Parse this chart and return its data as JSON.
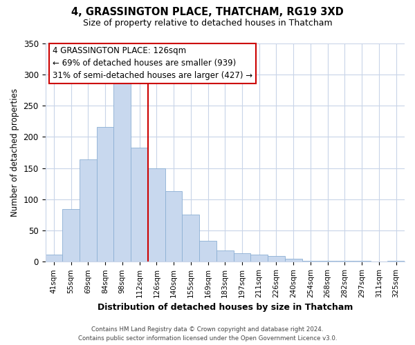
{
  "title": "4, GRASSINGTON PLACE, THATCHAM, RG19 3XD",
  "subtitle": "Size of property relative to detached houses in Thatcham",
  "xlabel": "Distribution of detached houses by size in Thatcham",
  "ylabel": "Number of detached properties",
  "footer_line1": "Contains HM Land Registry data © Crown copyright and database right 2024.",
  "footer_line2": "Contains public sector information licensed under the Open Government Licence v3.0.",
  "bar_labels": [
    "41sqm",
    "55sqm",
    "69sqm",
    "84sqm",
    "98sqm",
    "112sqm",
    "126sqm",
    "140sqm",
    "155sqm",
    "169sqm",
    "183sqm",
    "197sqm",
    "211sqm",
    "226sqm",
    "240sqm",
    "254sqm",
    "268sqm",
    "282sqm",
    "297sqm",
    "311sqm",
    "325sqm"
  ],
  "bar_values": [
    11,
    84,
    164,
    216,
    287,
    183,
    150,
    113,
    75,
    34,
    18,
    14,
    11,
    9,
    5,
    2,
    2,
    1,
    1,
    0,
    1
  ],
  "bar_color": "#c8d8ee",
  "bar_edge_color": "#8bafd4",
  "highlight_line_color": "#cc0000",
  "annotation_title": "4 GRASSINGTON PLACE: 126sqm",
  "annotation_line1": "← 69% of detached houses are smaller (939)",
  "annotation_line2": "31% of semi-detached houses are larger (427) →",
  "annotation_box_edge": "#cc0000",
  "ylim": [
    0,
    350
  ],
  "yticks": [
    0,
    50,
    100,
    150,
    200,
    250,
    300,
    350
  ],
  "background_color": "#ffffff",
  "grid_color": "#c8d4e8"
}
